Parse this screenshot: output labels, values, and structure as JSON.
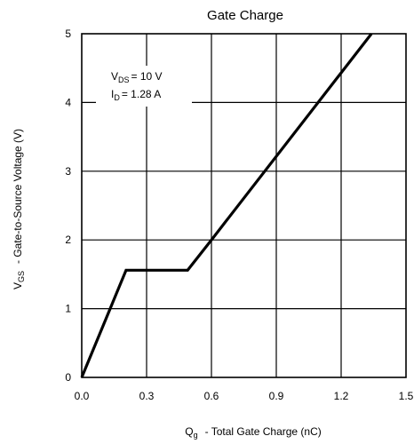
{
  "chart_data": {
    "type": "line",
    "title": "Gate Charge",
    "xlabel": {
      "symbol": "Q",
      "subscript": "g",
      "text": "-  Total Gate Charge (nC)"
    },
    "ylabel": {
      "symbol": "V",
      "subscript": "GS",
      "text": "-  Gate-to-Source Voltage (V)"
    },
    "xlim": [
      0,
      1.5
    ],
    "ylim": [
      0,
      5
    ],
    "xticks": [
      "0.0",
      "0.3",
      "0.6",
      "0.9",
      "1.2",
      "1.5"
    ],
    "yticks": [
      "0",
      "1",
      "2",
      "3",
      "4",
      "5"
    ],
    "grid": true,
    "annotations": [
      {
        "symbol": "V",
        "subscript": "DS",
        "value": "= 10  V"
      },
      {
        "symbol": "I",
        "subscript": "D",
        "value": "= 1.28  A"
      }
    ],
    "series": [
      {
        "x": [
          0.0,
          0.205,
          0.49,
          0.6,
          1.34
        ],
        "y": [
          0.0,
          1.56,
          1.56,
          2.0,
          5.0
        ],
        "color": "#000000"
      }
    ]
  }
}
